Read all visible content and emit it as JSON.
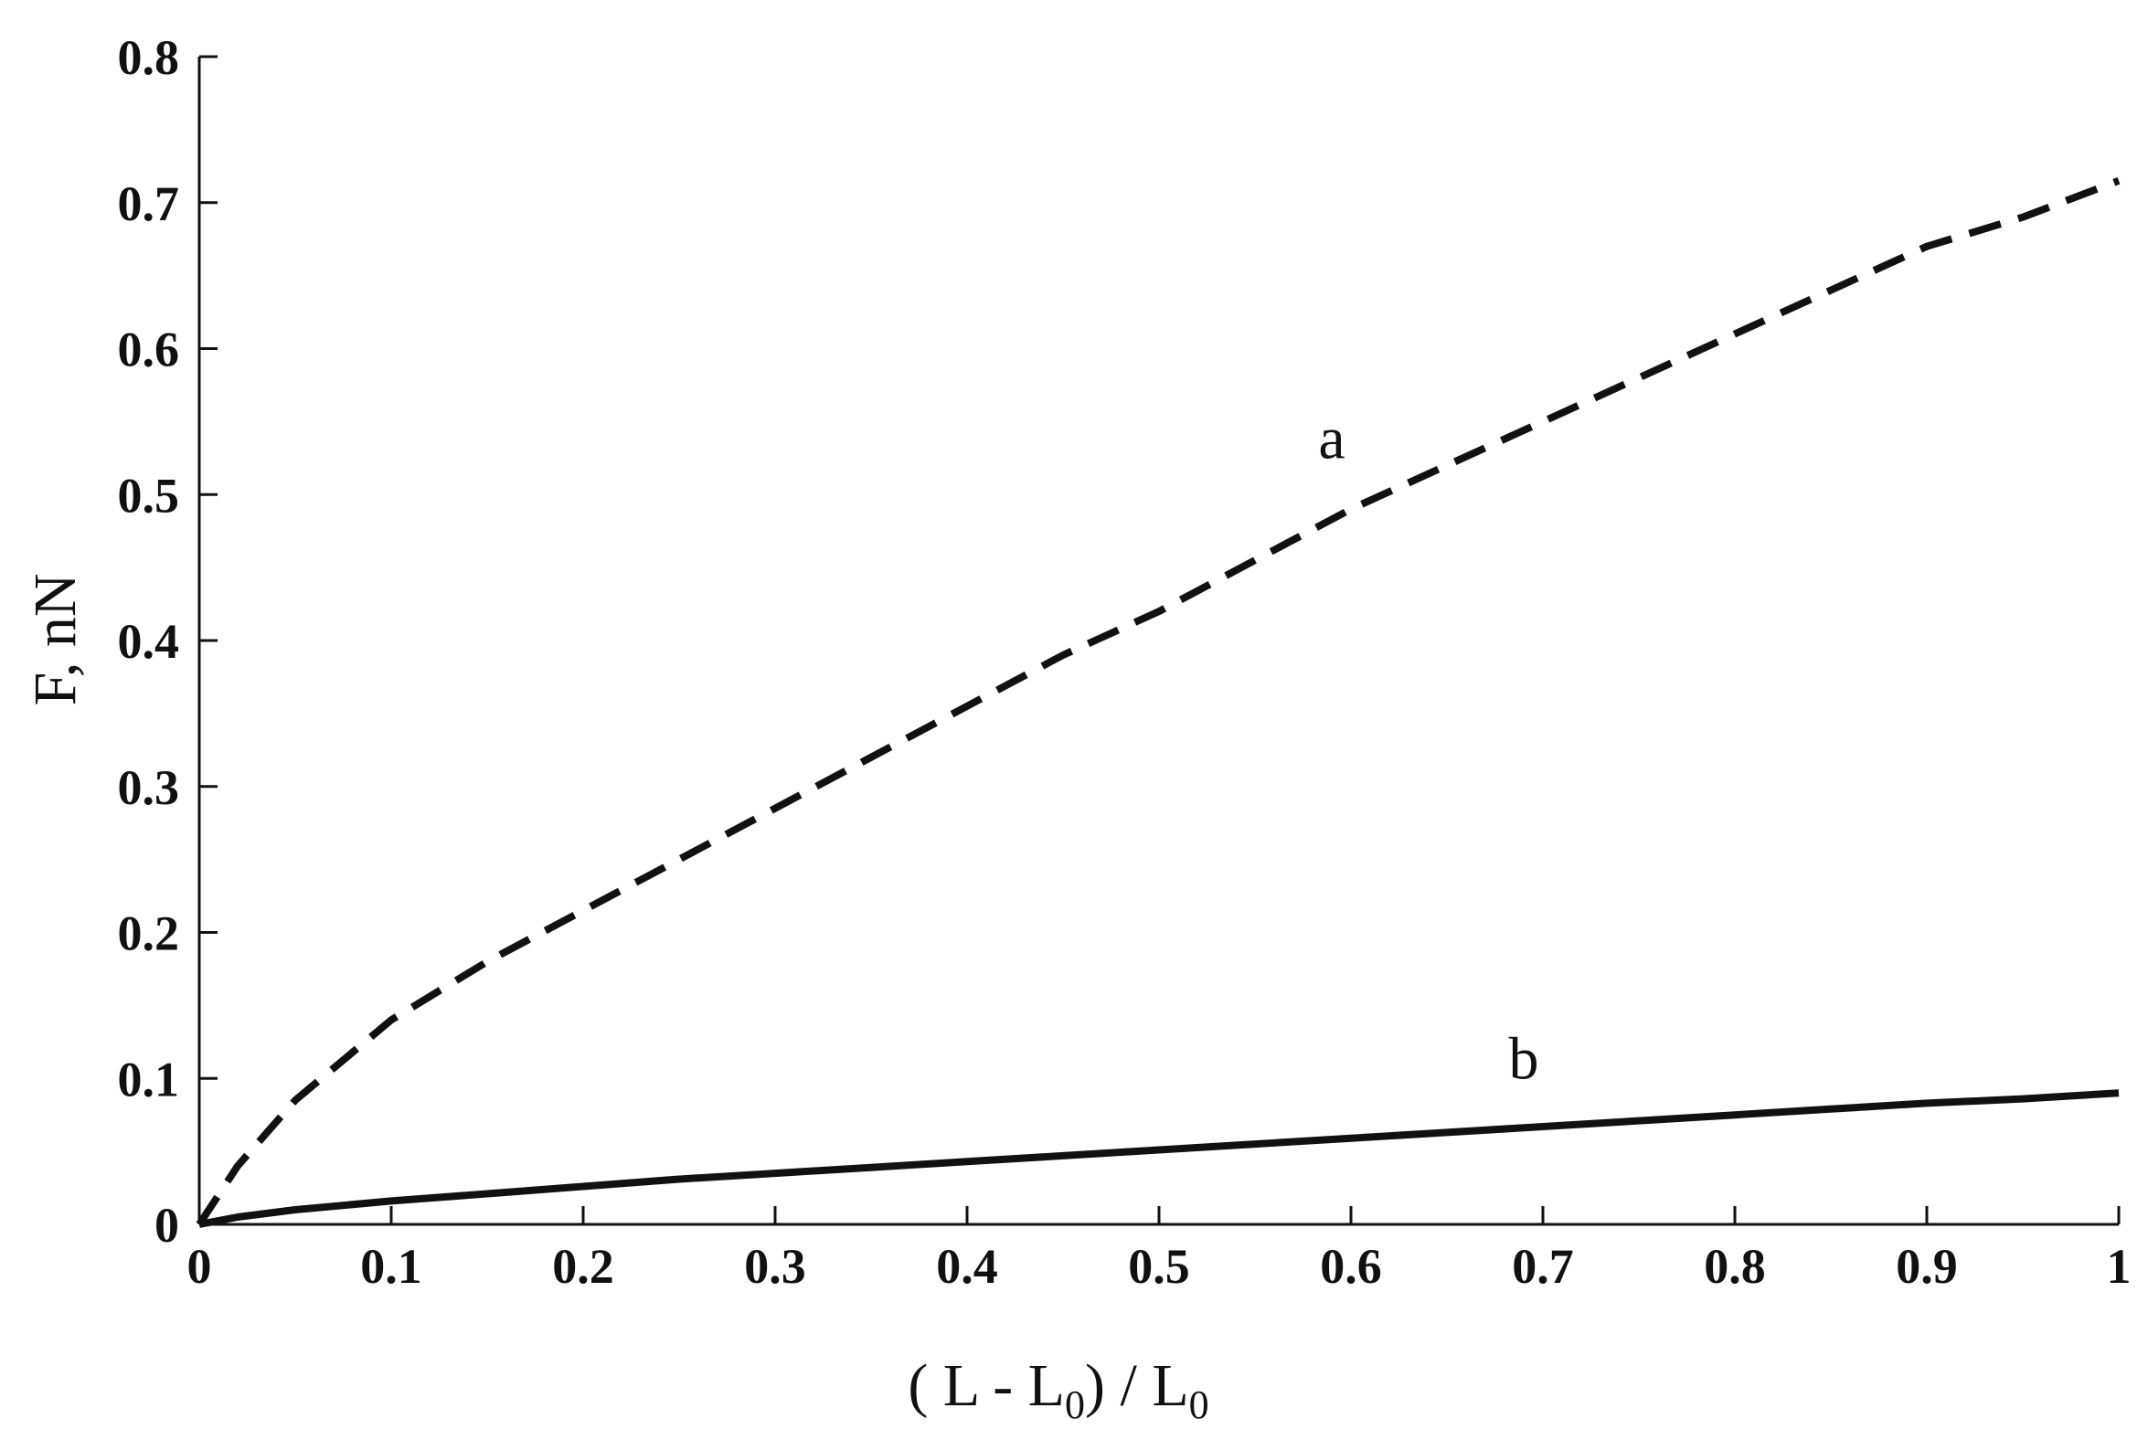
{
  "chart_data": {
    "type": "line",
    "xlabel": "(L - L0) / L0",
    "xlabel_parts": {
      "open": "( L - L",
      "sub1": "0",
      "mid": ") / L",
      "sub2": "0"
    },
    "ylabel": "F, nN",
    "xlim": [
      0,
      1
    ],
    "ylim": [
      0,
      0.8
    ],
    "x_ticks": [
      0,
      0.1,
      0.2,
      0.3,
      0.4,
      0.5,
      0.6,
      0.7,
      0.8,
      0.9,
      1
    ],
    "x_tick_labels": [
      "0",
      "0.1",
      "0.2",
      "0.3",
      "0.4",
      "0.5",
      "0.6",
      "0.7",
      "0.8",
      "0.9",
      "1"
    ],
    "y_ticks": [
      0,
      0.1,
      0.2,
      0.3,
      0.4,
      0.5,
      0.6,
      0.7,
      0.8
    ],
    "y_tick_labels": [
      "0",
      "0.1",
      "0.2",
      "0.3",
      "0.4",
      "0.5",
      "0.6",
      "0.7",
      "0.8"
    ],
    "grid": false,
    "series": [
      {
        "name": "a",
        "style": "dashed",
        "color": "#111111",
        "x": [
          0,
          0.02,
          0.05,
          0.1,
          0.15,
          0.2,
          0.25,
          0.3,
          0.35,
          0.4,
          0.45,
          0.5,
          0.55,
          0.6,
          0.65,
          0.7,
          0.75,
          0.8,
          0.85,
          0.9,
          0.95,
          1.0
        ],
        "y": [
          0,
          0.04,
          0.085,
          0.14,
          0.18,
          0.215,
          0.25,
          0.285,
          0.32,
          0.355,
          0.39,
          0.42,
          0.455,
          0.49,
          0.52,
          0.55,
          0.58,
          0.61,
          0.64,
          0.67,
          0.69,
          0.715
        ]
      },
      {
        "name": "b",
        "style": "solid",
        "color": "#111111",
        "x": [
          0,
          0.02,
          0.05,
          0.1,
          0.15,
          0.2,
          0.25,
          0.3,
          0.35,
          0.4,
          0.45,
          0.5,
          0.55,
          0.6,
          0.65,
          0.7,
          0.75,
          0.8,
          0.85,
          0.9,
          0.95,
          1.0
        ],
        "y": [
          0,
          0.005,
          0.01,
          0.016,
          0.021,
          0.026,
          0.031,
          0.035,
          0.039,
          0.043,
          0.047,
          0.051,
          0.055,
          0.059,
          0.063,
          0.067,
          0.071,
          0.075,
          0.079,
          0.083,
          0.086,
          0.09
        ]
      }
    ],
    "annotations": [
      {
        "text": "a",
        "x": 0.59,
        "y": 0.525
      },
      {
        "text": "b",
        "x": 0.69,
        "y": 0.1
      }
    ]
  }
}
